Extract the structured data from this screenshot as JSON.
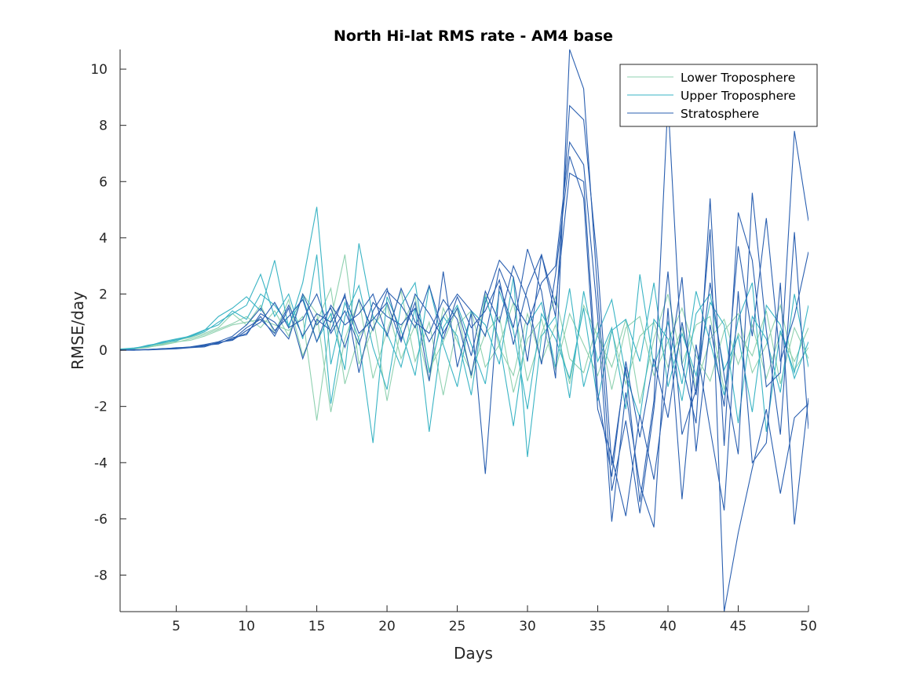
{
  "chart_data": {
    "type": "line",
    "title": "North Hi-lat RMS rate - AM4 base",
    "xlabel": "Days",
    "ylabel": "RMSE/day",
    "xlim": [
      1,
      50
    ],
    "ylim": [
      -9.3,
      10.7
    ],
    "xticks": [
      5,
      10,
      15,
      20,
      25,
      30,
      35,
      40,
      45,
      50
    ],
    "yticks": [
      -8,
      -6,
      -4,
      -2,
      0,
      2,
      4,
      6,
      8,
      10
    ],
    "grid": false,
    "legend_position": "top-right",
    "colors": {
      "Lower Troposphere": "#8fd1b0",
      "Upper Troposphere": "#3ab4c4",
      "Stratosphere": "#2a5fb0"
    },
    "series": [
      {
        "name": "Lower Troposphere",
        "group": "Lower Troposphere",
        "x": [
          1,
          2,
          3,
          4,
          5,
          6,
          7,
          8,
          9,
          10,
          11,
          12,
          13,
          14,
          15,
          16,
          17,
          18,
          19,
          20,
          21,
          22,
          23,
          24,
          25,
          26,
          27,
          28,
          29,
          30,
          31,
          32,
          33,
          34,
          35,
          36,
          37,
          38,
          39,
          40,
          41,
          42,
          43,
          44,
          45,
          46,
          47,
          48,
          49,
          50
        ],
        "y": [
          0.02,
          0.05,
          0.1,
          0.2,
          0.3,
          0.35,
          0.5,
          0.7,
          0.9,
          1.0,
          1.1,
          0.9,
          0.7,
          1.2,
          -2.5,
          1.1,
          3.4,
          -0.5,
          0.8,
          1.6,
          -0.3,
          0.9,
          -1.1,
          1.5,
          0.3,
          -0.8,
          0.6,
          1.2,
          -1.5,
          0.4,
          1.1,
          -0.7,
          1.3,
          0.2,
          -0.9,
          0.7,
          -1.2,
          0.5,
          1.0,
          -0.6,
          0.8,
          -1.3,
          0.4,
          1.1,
          -0.5,
          0.9,
          -1.0,
          0.6,
          -0.4,
          0.8
        ]
      },
      {
        "name": "Lower Troposphere",
        "group": "Lower Troposphere",
        "x": [
          1,
          2,
          3,
          4,
          5,
          6,
          7,
          8,
          9,
          10,
          11,
          12,
          13,
          14,
          15,
          16,
          17,
          18,
          19,
          20,
          21,
          22,
          23,
          24,
          25,
          26,
          27,
          28,
          29,
          30,
          31,
          32,
          33,
          34,
          35,
          36,
          37,
          38,
          39,
          40,
          41,
          42,
          43,
          44,
          45,
          46,
          47,
          48,
          49,
          50
        ],
        "y": [
          0.01,
          0.06,
          0.12,
          0.18,
          0.28,
          0.4,
          0.55,
          0.75,
          0.95,
          1.2,
          0.8,
          1.4,
          0.5,
          2.0,
          1.3,
          -2.2,
          0.4,
          1.8,
          -1.0,
          0.7,
          2.1,
          -0.4,
          1.0,
          -1.6,
          0.9,
          1.4,
          -0.6,
          0.2,
          1.7,
          -1.1,
          0.6,
          1.9,
          -0.3,
          -0.8,
          1.0,
          -1.4,
          0.8,
          1.2,
          -0.9,
          0.3,
          1.5,
          -0.2,
          -1.1,
          0.7,
          1.3,
          -0.8,
          0.2,
          1.6,
          -0.7,
          0.1
        ]
      },
      {
        "name": "Lower Troposphere",
        "group": "Lower Troposphere",
        "x": [
          1,
          2,
          3,
          4,
          5,
          6,
          7,
          8,
          9,
          10,
          11,
          12,
          13,
          14,
          15,
          16,
          17,
          18,
          19,
          20,
          21,
          22,
          23,
          24,
          25,
          26,
          27,
          28,
          29,
          30,
          31,
          32,
          33,
          34,
          35,
          36,
          37,
          38,
          39,
          40,
          41,
          42,
          43,
          44,
          45,
          46,
          47,
          48,
          49,
          50
        ],
        "y": [
          0.03,
          0.04,
          0.15,
          0.22,
          0.35,
          0.45,
          0.6,
          0.8,
          1.3,
          0.9,
          1.6,
          0.6,
          1.8,
          -0.2,
          1.0,
          2.2,
          -1.2,
          0.5,
          1.2,
          -1.8,
          0.8,
          1.9,
          -0.7,
          0.3,
          1.5,
          -1.0,
          2.0,
          0.1,
          -0.9,
          1.3,
          -0.4,
          0.9,
          -1.2,
          1.6,
          0.5,
          -0.6,
          1.1,
          -1.9,
          0.4,
          2.0,
          -0.5,
          0.9,
          1.2,
          -1.4,
          0.6,
          -0.2,
          1.4,
          -1.2,
          0.8,
          -0.3
        ]
      },
      {
        "name": "Upper Troposphere",
        "group": "Upper Troposphere",
        "x": [
          1,
          2,
          3,
          4,
          5,
          6,
          7,
          8,
          9,
          10,
          11,
          12,
          13,
          14,
          15,
          16,
          17,
          18,
          19,
          20,
          21,
          22,
          23,
          24,
          25,
          26,
          27,
          28,
          29,
          30,
          31,
          32,
          33,
          34,
          35,
          36,
          37,
          38,
          39,
          40,
          41,
          42,
          43,
          44,
          45,
          46,
          47,
          48,
          49,
          50
        ],
        "y": [
          0.04,
          0.08,
          0.15,
          0.3,
          0.4,
          0.5,
          0.7,
          1.2,
          1.5,
          1.9,
          1.4,
          3.2,
          0.8,
          2.4,
          5.1,
          -0.5,
          1.7,
          0.4,
          -3.3,
          1.9,
          0.7,
          -0.9,
          2.3,
          0.2,
          -1.3,
          1.4,
          0.9,
          -0.5,
          2.6,
          -3.8,
          0.5,
          1.2,
          -1.7,
          2.1,
          -0.4,
          0.8,
          -2.1,
          2.7,
          -0.6,
          1.0,
          -1.2,
          2.1,
          0.3,
          -1.6,
          1.1,
          2.4,
          -2.9,
          0.7,
          -0.8,
          1.6
        ]
      },
      {
        "name": "Upper Troposphere",
        "group": "Upper Troposphere",
        "x": [
          1,
          2,
          3,
          4,
          5,
          6,
          7,
          8,
          9,
          10,
          11,
          12,
          13,
          14,
          15,
          16,
          17,
          18,
          19,
          20,
          21,
          22,
          23,
          24,
          25,
          26,
          27,
          28,
          29,
          30,
          31,
          32,
          33,
          34,
          35,
          36,
          37,
          38,
          39,
          40,
          41,
          42,
          43,
          44,
          45,
          46,
          47,
          48,
          49,
          50
        ],
        "y": [
          0.02,
          0.06,
          0.18,
          0.25,
          0.38,
          0.48,
          0.65,
          1.0,
          1.3,
          1.6,
          2.7,
          1.2,
          2.0,
          0.4,
          3.4,
          -1.9,
          1.2,
          2.3,
          0.1,
          -1.4,
          1.6,
          2.4,
          -0.8,
          1.2,
          0.5,
          -1.6,
          1.9,
          0.3,
          -2.7,
          0.9,
          1.7,
          -0.6,
          2.2,
          -1.3,
          0.6,
          1.8,
          -0.9,
          -2.4,
          1.1,
          0.4,
          -1.8,
          1.3,
          2.0,
          -0.7,
          0.5,
          -2.2,
          1.6,
          0.9,
          -1.0,
          0.3
        ]
      },
      {
        "name": "Upper Troposphere",
        "group": "Upper Troposphere",
        "x": [
          1,
          2,
          3,
          4,
          5,
          6,
          7,
          8,
          9,
          10,
          11,
          12,
          13,
          14,
          15,
          16,
          17,
          18,
          19,
          20,
          21,
          22,
          23,
          24,
          25,
          26,
          27,
          28,
          29,
          30,
          31,
          32,
          33,
          34,
          35,
          36,
          37,
          38,
          39,
          40,
          41,
          42,
          43,
          44,
          45,
          46,
          47,
          48,
          49,
          50
        ],
        "y": [
          0.03,
          0.07,
          0.14,
          0.28,
          0.33,
          0.52,
          0.72,
          0.9,
          1.4,
          1.1,
          2.0,
          1.6,
          0.9,
          1.9,
          0.3,
          1.3,
          -0.7,
          3.8,
          1.2,
          0.6,
          -0.6,
          1.5,
          -2.9,
          0.8,
          1.6,
          0.2,
          -1.2,
          2.1,
          0.7,
          -2.1,
          1.3,
          0.4,
          -1.0,
          1.5,
          -1.8,
          0.7,
          1.1,
          -0.4,
          2.4,
          -1.3,
          0.6,
          -0.9,
          1.7,
          0.9,
          -2.6,
          1.2,
          0.4,
          -1.5,
          2.0,
          -0.6
        ]
      },
      {
        "name": "Stratosphere",
        "group": "Stratosphere",
        "x": [
          1,
          2,
          3,
          4,
          5,
          6,
          7,
          8,
          9,
          10,
          11,
          12,
          13,
          14,
          15,
          16,
          17,
          18,
          19,
          20,
          21,
          22,
          23,
          24,
          25,
          26,
          27,
          28,
          29,
          30,
          31,
          32,
          33,
          34,
          35,
          36,
          37,
          38,
          39,
          40,
          41,
          42,
          43,
          44,
          45,
          46,
          47,
          48,
          49,
          50
        ],
        "y": [
          0.0,
          0.0,
          0.02,
          0.04,
          0.06,
          0.1,
          0.15,
          0.25,
          0.4,
          0.6,
          1.2,
          0.5,
          1.5,
          -0.3,
          1.1,
          0.7,
          2.0,
          -0.8,
          1.4,
          2.2,
          0.4,
          1.7,
          -1.1,
          2.8,
          -0.6,
          1.3,
          -4.4,
          2.3,
          0.8,
          3.6,
          2.1,
          -1.0,
          10.7,
          9.3,
          2.0,
          -5.0,
          -2.5,
          -5.8,
          -2.1,
          2.8,
          -3.0,
          -1.4,
          4.3,
          -9.3,
          -6.5,
          -4.2,
          -2.1,
          -5.1,
          -2.4,
          -1.9
        ]
      },
      {
        "name": "Stratosphere",
        "group": "Stratosphere",
        "x": [
          1,
          2,
          3,
          4,
          5,
          6,
          7,
          8,
          9,
          10,
          11,
          12,
          13,
          14,
          15,
          16,
          17,
          18,
          19,
          20,
          21,
          22,
          23,
          24,
          25,
          26,
          27,
          28,
          29,
          30,
          31,
          32,
          33,
          34,
          35,
          36,
          37,
          38,
          39,
          40,
          41,
          42,
          43,
          44,
          45,
          46,
          47,
          48,
          49,
          50
        ],
        "y": [
          0.01,
          0.01,
          0.03,
          0.05,
          0.08,
          0.12,
          0.2,
          0.3,
          0.5,
          0.9,
          1.5,
          0.7,
          1.2,
          1.8,
          0.3,
          1.6,
          0.9,
          1.3,
          2.0,
          0.5,
          2.2,
          1.0,
          0.6,
          1.8,
          1.1,
          -0.9,
          1.7,
          3.2,
          2.6,
          -0.4,
          3.4,
          1.2,
          8.7,
          8.2,
          3.0,
          -4.1,
          -0.6,
          -5.4,
          -1.8,
          8.9,
          -0.5,
          -2.6,
          5.4,
          -3.4,
          4.9,
          3.2,
          -1.3,
          -0.8,
          7.8,
          4.6
        ]
      },
      {
        "name": "Stratosphere",
        "group": "Stratosphere",
        "x": [
          1,
          2,
          3,
          4,
          5,
          6,
          7,
          8,
          9,
          10,
          11,
          12,
          13,
          14,
          15,
          16,
          17,
          18,
          19,
          20,
          21,
          22,
          23,
          24,
          25,
          26,
          27,
          28,
          29,
          30,
          31,
          32,
          33,
          34,
          35,
          36,
          37,
          38,
          39,
          40,
          41,
          42,
          43,
          44,
          45,
          46,
          47,
          48,
          49,
          50
        ],
        "y": [
          0.0,
          0.02,
          0.01,
          0.03,
          0.05,
          0.09,
          0.12,
          0.28,
          0.35,
          0.7,
          1.0,
          1.7,
          0.8,
          1.1,
          2.0,
          0.6,
          1.4,
          0.2,
          1.7,
          1.2,
          0.9,
          1.5,
          0.3,
          1.2,
          2.0,
          1.4,
          0.5,
          2.9,
          1.7,
          0.9,
          2.4,
          3.0,
          7.4,
          6.6,
          1.2,
          -6.1,
          -1.5,
          -4.8,
          -6.3,
          1.5,
          -5.3,
          0.2,
          -2.8,
          -5.7,
          2.1,
          -4.0,
          -3.3,
          2.4,
          -6.2,
          -1.7
        ]
      },
      {
        "name": "Stratosphere",
        "group": "Stratosphere",
        "x": [
          1,
          2,
          3,
          4,
          5,
          6,
          7,
          8,
          9,
          10,
          11,
          12,
          13,
          14,
          15,
          16,
          17,
          18,
          19,
          20,
          21,
          22,
          23,
          24,
          25,
          26,
          27,
          28,
          29,
          30,
          31,
          32,
          33,
          34,
          35,
          36,
          37,
          38,
          39,
          40,
          41,
          42,
          43,
          44,
          45,
          46,
          47,
          48,
          49,
          50
        ],
        "y": [
          0.0,
          0.01,
          0.02,
          0.06,
          0.07,
          0.11,
          0.18,
          0.22,
          0.45,
          0.55,
          1.3,
          1.0,
          0.4,
          2.0,
          0.9,
          1.5,
          0.1,
          1.8,
          0.7,
          2.1,
          1.6,
          0.8,
          2.3,
          0.6,
          1.5,
          -0.2,
          2.1,
          1.0,
          3.0,
          1.8,
          -0.5,
          2.7,
          6.9,
          5.4,
          -2.1,
          -3.8,
          -5.9,
          -2.3,
          -4.6,
          -0.8,
          2.6,
          -3.6,
          0.9,
          -2.0,
          3.7,
          0.5,
          4.7,
          -0.4,
          1.2,
          3.5
        ]
      },
      {
        "name": "Stratosphere",
        "group": "Stratosphere",
        "x": [
          1,
          2,
          3,
          4,
          5,
          6,
          7,
          8,
          9,
          10,
          11,
          12,
          13,
          14,
          15,
          16,
          17,
          18,
          19,
          20,
          21,
          22,
          23,
          24,
          25,
          26,
          27,
          28,
          29,
          30,
          31,
          32,
          33,
          34,
          35,
          36,
          37,
          38,
          39,
          40,
          41,
          42,
          43,
          44,
          45,
          46,
          47,
          48,
          49,
          50
        ],
        "y": [
          0.01,
          0.0,
          0.03,
          0.04,
          0.09,
          0.1,
          0.16,
          0.27,
          0.38,
          0.8,
          1.1,
          0.6,
          1.6,
          0.5,
          1.3,
          1.0,
          1.9,
          0.6,
          1.1,
          1.7,
          0.3,
          2.0,
          1.3,
          0.4,
          1.9,
          0.8,
          1.4,
          2.5,
          0.2,
          2.2,
          3.4,
          1.6,
          6.3,
          6.0,
          -1.5,
          -4.5,
          -0.4,
          -3.1,
          -0.3,
          -2.4,
          1.0,
          -1.6,
          2.4,
          -0.9,
          -3.7,
          5.6,
          0.7,
          -3.0,
          4.2,
          -2.8
        ]
      }
    ]
  }
}
